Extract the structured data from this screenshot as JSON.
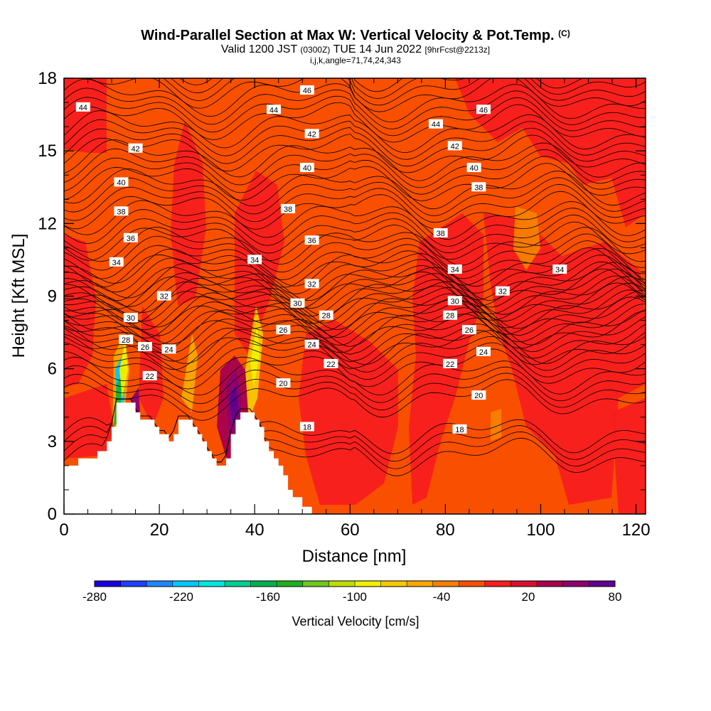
{
  "header": {
    "title": "Wind-Parallel Section at Max W: Vertical Velocity & Pot.Temp.",
    "title_mark": "(C)",
    "valid_prefix": "Valid 1200 JST",
    "valid_utc": "(0300Z)",
    "valid_date": "TUE 14 Jun 2022",
    "fcst": "[9hrFcst@2213z]",
    "subtitle2": "i,j,k,angle=71,74,24,343"
  },
  "chart_data": {
    "type": "heatmap",
    "xlabel": "Distance [nm]",
    "ylabel": "Height [Kft MSL]",
    "xlim": [
      0,
      122
    ],
    "ylim": [
      0,
      18
    ],
    "x_ticks": [
      0,
      20,
      40,
      60,
      80,
      100,
      120
    ],
    "y_ticks": [
      0,
      3,
      6,
      9,
      12,
      15,
      18
    ],
    "colorbar": {
      "label": "Vertical Velocity [cm/s]",
      "min": -280,
      "max": 80,
      "step": 20,
      "tick_labels": [
        -280,
        -220,
        -160,
        -100,
        -40,
        20,
        80
      ],
      "colors": [
        "#1a00e0",
        "#1f40ff",
        "#1f86ff",
        "#00c8ff",
        "#00e8e0",
        "#00d090",
        "#00b050",
        "#20b020",
        "#70c820",
        "#c0dc00",
        "#f0f000",
        "#f8c800",
        "#f8a800",
        "#f88000",
        "#f85000",
        "#f81e1e",
        "#d81030",
        "#a8004c",
        "#900070",
        "#600090"
      ]
    },
    "terrain_profile": [
      [
        0,
        2
      ],
      [
        3,
        2
      ],
      [
        3,
        2.3
      ],
      [
        7,
        2.3
      ],
      [
        7,
        2.6
      ],
      [
        9,
        2.6
      ],
      [
        9,
        3
      ],
      [
        10,
        3
      ],
      [
        10,
        3.6
      ],
      [
        11,
        3.6
      ],
      [
        11,
        4.6
      ],
      [
        15,
        4.6
      ],
      [
        15,
        4.2
      ],
      [
        16,
        4.2
      ],
      [
        16,
        3.9
      ],
      [
        19,
        3.9
      ],
      [
        19,
        3.6
      ],
      [
        20,
        3.6
      ],
      [
        20,
        3.3
      ],
      [
        22,
        3.3
      ],
      [
        22,
        3
      ],
      [
        23,
        3
      ],
      [
        23,
        3.3
      ],
      [
        24,
        3.3
      ],
      [
        24,
        3.9
      ],
      [
        27,
        3.9
      ],
      [
        27,
        3.6
      ],
      [
        28,
        3.6
      ],
      [
        28,
        3.3
      ],
      [
        29,
        3.3
      ],
      [
        29,
        3
      ],
      [
        30,
        3
      ],
      [
        30,
        2.6
      ],
      [
        31,
        2.6
      ],
      [
        31,
        2.3
      ],
      [
        32,
        2.3
      ],
      [
        32,
        2
      ],
      [
        34,
        2
      ],
      [
        34,
        2.3
      ],
      [
        35,
        2.3
      ],
      [
        35,
        3.3
      ],
      [
        36,
        3.3
      ],
      [
        36,
        3.9
      ],
      [
        37,
        3.9
      ],
      [
        37,
        4.2
      ],
      [
        40,
        4.2
      ],
      [
        40,
        3.9
      ],
      [
        41,
        3.9
      ],
      [
        41,
        3.6
      ],
      [
        42,
        3.6
      ],
      [
        42,
        3
      ],
      [
        43,
        3
      ],
      [
        43,
        2.6
      ],
      [
        44,
        2.6
      ],
      [
        44,
        2.3
      ],
      [
        45,
        2.3
      ],
      [
        45,
        2
      ],
      [
        46,
        2
      ],
      [
        46,
        1.6
      ],
      [
        47,
        1.6
      ],
      [
        47,
        1
      ],
      [
        48,
        1
      ],
      [
        48,
        0.7
      ],
      [
        50,
        0.7
      ],
      [
        50,
        0.3
      ],
      [
        52,
        0.3
      ],
      [
        52,
        0
      ],
      [
        0,
        0
      ]
    ],
    "theta_contours": [
      {
        "label": "18",
        "base": 2.2
      },
      {
        "label": "20",
        "base": 4.7
      },
      {
        "label": "22",
        "base": 6.0
      },
      {
        "label": "24",
        "base": 6.8
      },
      {
        "label": "26",
        "base": 7.5
      },
      {
        "label": "28",
        "base": 8.1
      },
      {
        "label": "30",
        "base": 8.7
      },
      {
        "label": "32",
        "base": 9.3
      },
      {
        "label": "34",
        "base": 10.2
      },
      {
        "label": "36",
        "base": 11.3
      },
      {
        "label": "38",
        "base": 12.6
      },
      {
        "label": "40",
        "base": 13.8
      },
      {
        "label": "42",
        "base": 15.0
      },
      {
        "label": "44",
        "base": 16.3
      },
      {
        "label": "46",
        "base": 17.6
      }
    ],
    "contour_labels": [
      {
        "text": "44",
        "x": 4,
        "y": 16.8
      },
      {
        "text": "46",
        "x": 51,
        "y": 17.5
      },
      {
        "text": "44",
        "x": 44,
        "y": 16.7
      },
      {
        "text": "46",
        "x": 88,
        "y": 16.7
      },
      {
        "text": "44",
        "x": 78,
        "y": 16.1
      },
      {
        "text": "42",
        "x": 15,
        "y": 15.1
      },
      {
        "text": "42",
        "x": 52,
        "y": 15.7
      },
      {
        "text": "42",
        "x": 82,
        "y": 15.2
      },
      {
        "text": "40",
        "x": 12,
        "y": 13.7
      },
      {
        "text": "40",
        "x": 51,
        "y": 14.3
      },
      {
        "text": "40",
        "x": 86,
        "y": 14.3
      },
      {
        "text": "38",
        "x": 87,
        "y": 13.5
      },
      {
        "text": "38",
        "x": 12,
        "y": 12.5
      },
      {
        "text": "38",
        "x": 47,
        "y": 12.6
      },
      {
        "text": "38",
        "x": 79,
        "y": 11.6
      },
      {
        "text": "36",
        "x": 14,
        "y": 11.4
      },
      {
        "text": "36",
        "x": 52,
        "y": 11.3
      },
      {
        "text": "34",
        "x": 11,
        "y": 10.4
      },
      {
        "text": "34",
        "x": 40,
        "y": 10.5
      },
      {
        "text": "34",
        "x": 82,
        "y": 10.1
      },
      {
        "text": "34",
        "x": 104,
        "y": 10.1
      },
      {
        "text": "32",
        "x": 21,
        "y": 9.0
      },
      {
        "text": "32",
        "x": 52,
        "y": 9.5
      },
      {
        "text": "32",
        "x": 92,
        "y": 9.2
      },
      {
        "text": "30",
        "x": 14,
        "y": 8.1
      },
      {
        "text": "30",
        "x": 49,
        "y": 8.7
      },
      {
        "text": "30",
        "x": 82,
        "y": 8.8
      },
      {
        "text": "28",
        "x": 55,
        "y": 8.2
      },
      {
        "text": "28",
        "x": 81,
        "y": 8.2
      },
      {
        "text": "26",
        "x": 46,
        "y": 7.6
      },
      {
        "text": "26",
        "x": 85,
        "y": 7.6
      },
      {
        "text": "28",
        "x": 13,
        "y": 7.2
      },
      {
        "text": "26",
        "x": 17,
        "y": 6.9
      },
      {
        "text": "24",
        "x": 22,
        "y": 6.8
      },
      {
        "text": "24",
        "x": 52,
        "y": 7.0
      },
      {
        "text": "24",
        "x": 88,
        "y": 6.7
      },
      {
        "text": "22",
        "x": 56,
        "y": 6.2
      },
      {
        "text": "22",
        "x": 81,
        "y": 6.2
      },
      {
        "text": "22",
        "x": 18,
        "y": 5.7
      },
      {
        "text": "20",
        "x": 46,
        "y": 5.4
      },
      {
        "text": "20",
        "x": 87,
        "y": 4.9
      },
      {
        "text": "18",
        "x": 51,
        "y": 3.6
      },
      {
        "text": "18",
        "x": 83,
        "y": 3.5
      }
    ]
  }
}
